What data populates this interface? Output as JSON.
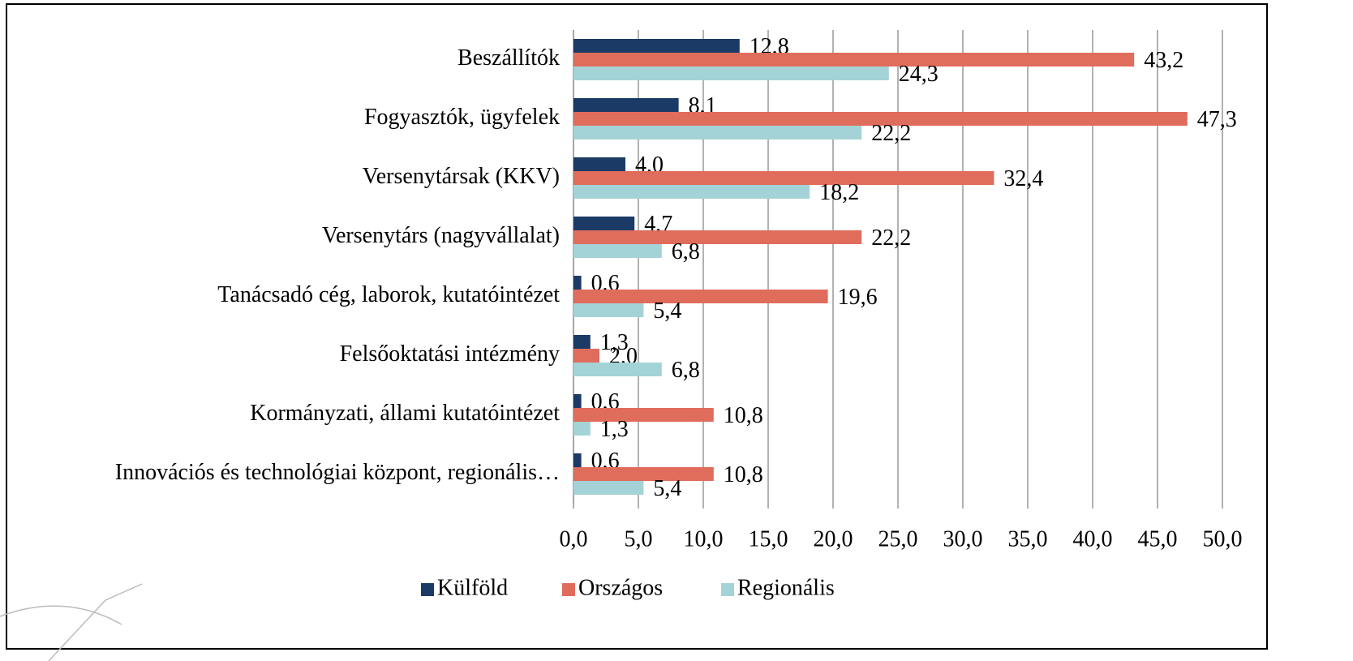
{
  "chart_data": {
    "type": "bar",
    "orientation": "horizontal",
    "categories": [
      "Beszállítók",
      "Fogyasztók, ügyfelek",
      "Versenytársak (KKV)",
      "Versenytárs (nagyvállalat)",
      "Tanácsadó cég, laborok, kutatóintézet",
      "Felsőoktatási intézmény",
      "Kormányzati, állami kutatóintézet",
      "Innovációs és technológiai központ, regionális…"
    ],
    "series": [
      {
        "name": "Külföld",
        "color": "#1b3a66",
        "values": [
          12.8,
          8.1,
          4.0,
          4.7,
          0.6,
          1.3,
          0.6,
          0.6
        ],
        "value_labels": [
          "12,8",
          "8,1",
          "4,0",
          "4,7",
          "0,6",
          "1,3",
          "0,6",
          "0,6"
        ]
      },
      {
        "name": "Országos",
        "color": "#e06c5c",
        "values": [
          43.2,
          47.3,
          32.4,
          22.2,
          19.6,
          2.0,
          10.8,
          10.8
        ],
        "value_labels": [
          "43,2",
          "47,3",
          "32,4",
          "22,2",
          "19,6",
          "2,0",
          "10,8",
          "10,8"
        ]
      },
      {
        "name": "Regionális",
        "color": "#a3d3d7",
        "values": [
          24.3,
          22.2,
          18.2,
          6.8,
          5.4,
          6.8,
          1.3,
          5.4
        ],
        "value_labels": [
          "24,3",
          "22,2",
          "18,2",
          "6,8",
          "5,4",
          "6,8",
          "1,3",
          "5,4"
        ]
      }
    ],
    "xlim": [
      0,
      50
    ],
    "xticks": [
      {
        "value": 0,
        "label": "0,0"
      },
      {
        "value": 5,
        "label": "5,0"
      },
      {
        "value": 10,
        "label": "10,0"
      },
      {
        "value": 15,
        "label": "15,0"
      },
      {
        "value": 20,
        "label": "20,0"
      },
      {
        "value": 25,
        "label": "25,0"
      },
      {
        "value": 30,
        "label": "30,0"
      },
      {
        "value": 35,
        "label": "35,0"
      },
      {
        "value": 40,
        "label": "40,0"
      },
      {
        "value": 45,
        "label": "45,0"
      },
      {
        "value": 50,
        "label": "50,0"
      }
    ],
    "grid": true,
    "legend": "bottom"
  }
}
